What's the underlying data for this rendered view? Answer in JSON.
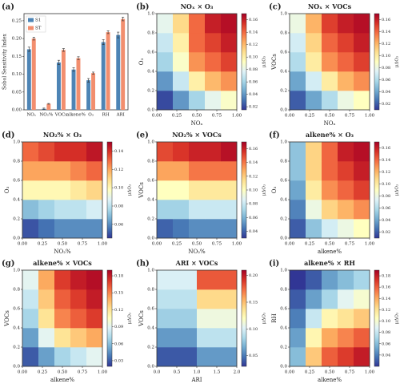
{
  "chart_data": [
    {
      "type": "bar",
      "panel_label": "(a)",
      "ylabel": "Sobol Sensitivity Index",
      "categories": [
        "NOₓ",
        "NO₂%",
        "VOCs",
        "alkene%",
        "O₃",
        "RH",
        "ARI"
      ],
      "series": [
        {
          "name": "S1",
          "color": "#4d84b5",
          "values": [
            0.17,
            0.003,
            0.133,
            0.113,
            0.083,
            0.19,
            0.21
          ],
          "errors": [
            0.006,
            0.002,
            0.006,
            0.005,
            0.005,
            0.007,
            0.008
          ]
        },
        {
          "name": "ST",
          "color": "#f28e6e",
          "values": [
            0.2,
            0.017,
            0.168,
            0.145,
            0.103,
            0.218,
            0.255
          ],
          "errors": [
            0.004,
            0.001,
            0.004,
            0.004,
            0.003,
            0.004,
            0.005
          ]
        }
      ],
      "ylim": [
        0,
        0.27
      ],
      "yticks": [
        {
          "value": 0,
          "label": "0.00"
        },
        0.05,
        {
          "value": 0.1,
          "label": "0.10"
        },
        0.15,
        {
          "value": 0.2,
          "label": "0.20"
        },
        0.25
      ]
    },
    {
      "type": "heatmap",
      "panel_label": "(b)",
      "title": "NOₓ × O₃",
      "xlabel": "NOₓ",
      "ylabel": "O₃",
      "colorbar_label": "μΔO₃",
      "colormap": "RdYlBu_r",
      "x": [
        0.1,
        0.3,
        0.5,
        0.7,
        0.9
      ],
      "y": [
        0.1,
        0.3,
        0.5,
        0.7,
        0.9
      ],
      "z": [
        [
          0.02,
          0.04,
          0.06,
          0.08,
          0.09
        ],
        [
          0.04,
          0.07,
          0.1,
          0.12,
          0.13
        ],
        [
          0.06,
          0.09,
          0.13,
          0.14,
          0.15
        ],
        [
          0.07,
          0.1,
          0.14,
          0.15,
          0.16
        ],
        [
          0.08,
          0.11,
          0.14,
          0.16,
          0.165
        ]
      ],
      "xlim": [
        0,
        1
      ],
      "ylim": [
        0,
        1
      ],
      "clim": [
        0.015,
        0.17
      ],
      "xticks": [
        {
          "value": 0,
          "label": "0.00"
        },
        0.25,
        {
          "value": 0.5,
          "label": "0.50"
        },
        0.75,
        {
          "value": 1,
          "label": "1.00"
        }
      ],
      "yticks": [
        {
          "value": 0,
          "label": "0.0"
        },
        0.2,
        0.4,
        0.6,
        0.8,
        {
          "value": 1,
          "label": "1.0"
        }
      ],
      "cticks": [
        0.02,
        0.04,
        0.06,
        0.08,
        {
          "value": 0.1,
          "label": "0.10"
        },
        0.12,
        0.14,
        0.16
      ]
    },
    {
      "type": "heatmap",
      "panel_label": "(c)",
      "title": "NOₓ × VOCs",
      "xlabel": "NOₓ",
      "ylabel": "VOCs",
      "colorbar_label": "μΔO₃",
      "colormap": "RdYlBu_r",
      "x": [
        0.1,
        0.3,
        0.5,
        0.7,
        0.9
      ],
      "y": [
        0.1,
        0.3,
        0.5,
        0.7,
        0.9
      ],
      "z": [
        [
          0.02,
          0.04,
          0.06,
          0.08,
          0.09
        ],
        [
          0.04,
          0.07,
          0.1,
          0.12,
          0.13
        ],
        [
          0.06,
          0.1,
          0.13,
          0.14,
          0.15
        ],
        [
          0.07,
          0.11,
          0.14,
          0.15,
          0.16
        ],
        [
          0.08,
          0.12,
          0.15,
          0.16,
          0.165
        ]
      ],
      "xlim": [
        0,
        1
      ],
      "ylim": [
        0,
        1
      ],
      "clim": [
        0.01,
        0.17
      ],
      "xticks": [
        {
          "value": 0,
          "label": "0.00"
        },
        0.25,
        {
          "value": 0.5,
          "label": "0.50"
        },
        0.75,
        {
          "value": 1,
          "label": "1.00"
        }
      ],
      "yticks": [
        {
          "value": 0,
          "label": "0.0"
        },
        0.2,
        0.4,
        0.6,
        0.8,
        {
          "value": 1,
          "label": "1.0"
        }
      ],
      "cticks": [
        0.02,
        0.04,
        0.06,
        0.08,
        {
          "value": 0.1,
          "label": "0.10"
        },
        0.12,
        0.14,
        0.16
      ]
    },
    {
      "type": "heatmap",
      "panel_label": "(d)",
      "title": "NO₂% × O₃",
      "xlabel": "NO₂%",
      "ylabel": "O₃",
      "colorbar_label": "μΔO₃",
      "colormap": "RdYlBu_r",
      "x": [
        0.1,
        0.3,
        0.5,
        0.7,
        0.9
      ],
      "y": [
        0.1,
        0.3,
        0.5,
        0.7,
        0.9
      ],
      "z": [
        [
          0.05,
          0.055,
          0.06,
          0.06,
          0.06
        ],
        [
          0.07,
          0.075,
          0.08,
          0.08,
          0.085
        ],
        [
          0.1,
          0.1,
          0.1,
          0.105,
          0.11
        ],
        [
          0.12,
          0.12,
          0.12,
          0.125,
          0.13
        ],
        [
          0.13,
          0.135,
          0.14,
          0.14,
          0.145
        ]
      ],
      "xlim": [
        0,
        1
      ],
      "ylim": [
        0,
        1
      ],
      "clim": [
        0.045,
        0.15
      ],
      "xticks": [
        {
          "value": 0,
          "label": "0.00"
        },
        0.25,
        {
          "value": 0.5,
          "label": "0.50"
        },
        0.75,
        {
          "value": 1,
          "label": "1.00"
        }
      ],
      "yticks": [
        {
          "value": 0,
          "label": "0.0"
        },
        0.2,
        0.4,
        0.6,
        0.8,
        {
          "value": 1,
          "label": "1.0"
        }
      ],
      "cticks": [
        0.06,
        0.08,
        {
          "value": 0.1,
          "label": "0.10"
        },
        0.12,
        0.14
      ]
    },
    {
      "type": "heatmap",
      "panel_label": "(e)",
      "title": "NO₂% × VOCs",
      "xlabel": "NO₂%",
      "ylabel": "VOCs",
      "colorbar_label": "μΔO₃",
      "colormap": "RdYlBu_r",
      "x": [
        0.1,
        0.3,
        0.5,
        0.7,
        0.9
      ],
      "y": [
        0.1,
        0.3,
        0.5,
        0.7,
        0.9
      ],
      "z": [
        [
          0.04,
          0.045,
          0.05,
          0.05,
          0.05
        ],
        [
          0.07,
          0.07,
          0.08,
          0.08,
          0.08
        ],
        [
          0.1,
          0.1,
          0.11,
          0.11,
          0.11
        ],
        [
          0.13,
          0.13,
          0.14,
          0.14,
          0.14
        ],
        [
          0.15,
          0.155,
          0.16,
          0.16,
          0.165
        ]
      ],
      "xlim": [
        0,
        1
      ],
      "ylim": [
        0,
        1
      ],
      "clim": [
        0.03,
        0.17
      ],
      "xticks": [
        {
          "value": 0,
          "label": "0.00"
        },
        0.25,
        {
          "value": 0.5,
          "label": "0.50"
        },
        0.75,
        {
          "value": 1,
          "label": "1.00"
        }
      ],
      "yticks": [
        {
          "value": 0,
          "label": "0.0"
        },
        0.2,
        0.4,
        0.6,
        0.8,
        {
          "value": 1,
          "label": "1.0"
        }
      ],
      "cticks": [
        0.04,
        0.06,
        0.08,
        {
          "value": 0.1,
          "label": "0.10"
        },
        0.12,
        0.14,
        0.16
      ]
    },
    {
      "type": "heatmap",
      "panel_label": "(f)",
      "title": "alkene% × O₃",
      "xlabel": "alkene%",
      "ylabel": "O₃",
      "colorbar_label": "μΔO₃",
      "colormap": "RdYlBu_r",
      "x": [
        0.1,
        0.3,
        0.5,
        0.7,
        0.9
      ],
      "y": [
        0.1,
        0.3,
        0.5,
        0.7,
        0.9
      ],
      "z": [
        [
          0.02,
          0.05,
          0.07,
          0.08,
          0.09
        ],
        [
          0.03,
          0.08,
          0.11,
          0.12,
          0.13
        ],
        [
          0.04,
          0.1,
          0.13,
          0.14,
          0.15
        ],
        [
          0.05,
          0.11,
          0.14,
          0.15,
          0.16
        ],
        [
          0.05,
          0.11,
          0.14,
          0.16,
          0.165
        ]
      ],
      "xlim": [
        0,
        1
      ],
      "ylim": [
        0,
        1
      ],
      "clim": [
        0.01,
        0.17
      ],
      "xticks": [
        {
          "value": 0,
          "label": "0.00"
        },
        0.25,
        {
          "value": 0.5,
          "label": "0.50"
        },
        0.75,
        {
          "value": 1,
          "label": "1.00"
        }
      ],
      "yticks": [
        {
          "value": 0,
          "label": "0.0"
        },
        0.2,
        0.4,
        0.6,
        0.8,
        {
          "value": 1,
          "label": "1.0"
        }
      ],
      "cticks": [
        0.02,
        0.04,
        0.06,
        0.08,
        {
          "value": 0.1,
          "label": "0.10"
        },
        0.12,
        0.14,
        0.16
      ]
    },
    {
      "type": "heatmap",
      "panel_label": "(g)",
      "title": "alkene% × VOCs",
      "xlabel": "alkene%",
      "ylabel": "VOCs",
      "colorbar_label": "μΔO₃",
      "colormap": "RdYlBu_r",
      "x": [
        0.1,
        0.3,
        0.5,
        0.7,
        0.9
      ],
      "y": [
        0.1,
        0.3,
        0.5,
        0.7,
        0.9
      ],
      "z": [
        [
          0.03,
          0.05,
          0.07,
          0.08,
          0.09
        ],
        [
          0.05,
          0.09,
          0.12,
          0.13,
          0.14
        ],
        [
          0.07,
          0.12,
          0.15,
          0.16,
          0.17
        ],
        [
          0.08,
          0.13,
          0.16,
          0.17,
          0.18
        ],
        [
          0.09,
          0.14,
          0.17,
          0.18,
          0.185
        ]
      ],
      "xlim": [
        0,
        1
      ],
      "ylim": [
        0,
        1
      ],
      "clim": [
        0.02,
        0.19
      ],
      "xticks": [
        {
          "value": 0,
          "label": "0.00"
        },
        0.25,
        {
          "value": 0.5,
          "label": "0.50"
        },
        0.75,
        {
          "value": 1,
          "label": "1.00"
        }
      ],
      "yticks": [
        {
          "value": 0,
          "label": "0.0"
        },
        0.2,
        0.4,
        0.6,
        0.8,
        {
          "value": 1,
          "label": "1.0"
        }
      ],
      "cticks": [
        0.03,
        0.06,
        0.09,
        0.12,
        0.15,
        0.18
      ]
    },
    {
      "type": "heatmap",
      "panel_label": "(h)",
      "title": "ARI × VOCs",
      "xlabel": "ARI",
      "ylabel": "VOCs",
      "colorbar_label": "μΔO₃",
      "colormap": "RdYlBu_r",
      "x": [
        0.5,
        1.5
      ],
      "y": [
        0.1,
        0.3,
        0.5,
        0.7,
        0.9
      ],
      "z": [
        [
          0.04,
          0.06
        ],
        [
          0.06,
          0.09
        ],
        [
          0.08,
          0.11
        ],
        [
          0.09,
          0.14
        ],
        [
          0.1,
          0.18
        ]
      ],
      "xlim": [
        0,
        2
      ],
      "ylim": [
        0,
        1
      ],
      "clim": [
        0.03,
        0.21
      ],
      "xticks": [
        {
          "value": 0,
          "label": "0.0"
        },
        0.5,
        {
          "value": 1,
          "label": "1.0"
        },
        1.5,
        {
          "value": 2,
          "label": "2.0"
        }
      ],
      "yticks": [
        {
          "value": 0,
          "label": "0.0"
        },
        0.2,
        0.4,
        0.6,
        0.8,
        {
          "value": 1,
          "label": "1.0"
        }
      ],
      "cticks": [
        0.05,
        {
          "value": 0.1,
          "label": "0.10"
        },
        0.15,
        {
          "value": 0.2,
          "label": "0.20"
        }
      ]
    },
    {
      "type": "heatmap",
      "panel_label": "(i)",
      "title": "alkene% × RH",
      "xlabel": "alkene%",
      "ylabel": "RH",
      "colorbar_label": "μΔO₃",
      "colormap": "RdYlBu_r",
      "x": [
        0.1,
        0.3,
        0.5,
        0.7,
        0.9
      ],
      "y": [
        0.1,
        0.3,
        0.5,
        0.7,
        0.9
      ],
      "z": [
        [
          0.06,
          0.13,
          0.16,
          0.17,
          0.18
        ],
        [
          0.05,
          0.11,
          0.14,
          0.15,
          0.16
        ],
        [
          0.04,
          0.08,
          0.11,
          0.12,
          0.13
        ],
        [
          0.03,
          0.05,
          0.07,
          0.09,
          0.1
        ],
        [
          0.02,
          0.03,
          0.05,
          0.06,
          0.07
        ]
      ],
      "xlim": [
        0,
        1
      ],
      "ylim": [
        0,
        1
      ],
      "clim": [
        0.02,
        0.19
      ],
      "xticks": [
        {
          "value": 0,
          "label": "0.00"
        },
        0.25,
        {
          "value": 0.5,
          "label": "0.50"
        },
        0.75,
        {
          "value": 1,
          "label": "1.00"
        }
      ],
      "yticks": [
        {
          "value": 0,
          "label": "0.0"
        },
        0.2,
        0.4,
        0.6,
        0.8,
        {
          "value": 1,
          "label": "1.0"
        }
      ],
      "cticks": [
        0.04,
        0.06,
        0.08,
        {
          "value": 0.1,
          "label": "0.10"
        },
        0.12,
        0.14,
        0.16,
        0.18
      ]
    }
  ]
}
